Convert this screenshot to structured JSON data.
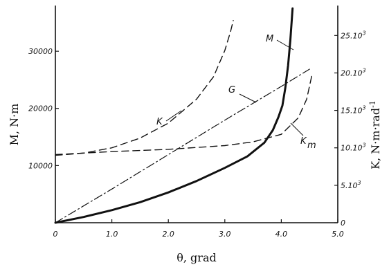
{
  "chart_data": {
    "type": "line",
    "xlabel": "θ, grad",
    "ylabel_left": "M, N·m",
    "ylabel_right": "K, N·m·rad",
    "ylabel_right_sup": "-1",
    "xlim": [
      0,
      5.0
    ],
    "ylim_left": [
      0,
      38000
    ],
    "ylim_right": [
      0,
      290000
    ],
    "x_ticks": [
      "0",
      "1.0",
      "2.0",
      "3.0",
      "4.0",
      "5.0"
    ],
    "y_left_ticks": [
      "10000",
      "20000",
      "30000"
    ],
    "y_right_ticks": [
      "0",
      "5.10",
      "10.10",
      "15.10",
      "20.10",
      "25.10"
    ],
    "y_right_tick_sup": "3",
    "grid": false,
    "series": [
      {
        "name": "M",
        "axis": "left",
        "style": "solid-thick",
        "x": [
          0,
          0.5,
          1.0,
          1.5,
          2.0,
          2.5,
          3.0,
          3.4,
          3.7,
          3.85,
          3.95,
          4.02,
          4.07,
          4.12,
          4.16,
          4.2
        ],
        "y": [
          0,
          1000,
          2200,
          3600,
          5300,
          7300,
          9600,
          11600,
          14000,
          16200,
          18500,
          20500,
          23500,
          27500,
          32000,
          37500
        ]
      },
      {
        "name": "K",
        "axis": "right",
        "style": "dashed",
        "x": [
          0,
          0.5,
          1.0,
          1.5,
          2.0,
          2.5,
          2.8,
          3.0,
          3.1,
          3.15
        ],
        "y": [
          90000,
          93000,
          100000,
          113000,
          133000,
          165000,
          195000,
          230000,
          255000,
          270000
        ]
      },
      {
        "name": "G",
        "axis": "right",
        "style": "dash-dot",
        "x": [
          0,
          1.0,
          2.0,
          3.0,
          4.0,
          4.5
        ],
        "y": [
          0,
          45000,
          91000,
          137000,
          182000,
          205000
        ]
      },
      {
        "name": "Km",
        "axis": "right",
        "style": "dashed",
        "x": [
          0,
          1.0,
          2.0,
          3.0,
          3.5,
          4.0,
          4.3,
          4.45,
          4.55
        ],
        "y": [
          91000,
          95000,
          98000,
          103000,
          108000,
          118000,
          140000,
          165000,
          200000
        ]
      }
    ]
  }
}
